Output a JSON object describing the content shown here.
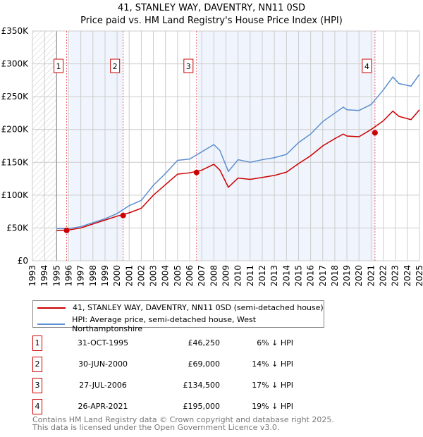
{
  "chart_data": {
    "type": "line",
    "title": "41, STANLEY WAY, DAVENTRY, NN11 0SD",
    "subtitle": "Price paid vs. HM Land Registry's House Price Index (HPI)",
    "xlim": [
      1993,
      2025
    ],
    "ylim": [
      0,
      350000
    ],
    "yticks": [
      {
        "v": 0,
        "label": "£0"
      },
      {
        "v": 50000,
        "label": "£50K"
      },
      {
        "v": 100000,
        "label": "£100K"
      },
      {
        "v": 150000,
        "label": "£150K"
      },
      {
        "v": 200000,
        "label": "£200K"
      },
      {
        "v": 250000,
        "label": "£250K"
      },
      {
        "v": 300000,
        "label": "£300K"
      },
      {
        "v": 350000,
        "label": "£350K"
      }
    ],
    "xticks": [
      "1993",
      "1994",
      "1995",
      "1996",
      "1997",
      "1998",
      "1999",
      "2000",
      "2001",
      "2002",
      "2003",
      "2004",
      "2005",
      "2006",
      "2007",
      "2008",
      "2009",
      "2010",
      "2011",
      "2012",
      "2013",
      "2014",
      "2015",
      "2016",
      "2017",
      "2018",
      "2019",
      "2020",
      "2021",
      "2022",
      "2023",
      "2024",
      "2025"
    ],
    "series": [
      {
        "name": "41, STANLEY WAY, DAVENTRY, NN11 0SD (semi-detached house)",
        "color": "#cc0000",
        "x": [
          1995,
          1996,
          1997,
          1998,
          1999,
          2000,
          2001,
          2002,
          2003,
          2004,
          2005,
          2006,
          2007,
          2008,
          2008.5,
          2009.2,
          2010,
          2011,
          2012,
          2013,
          2014,
          2015,
          2016,
          2017,
          2018,
          2018.7,
          2019,
          2020,
          2021,
          2022,
          2022.8,
          2023.3,
          2024.3,
          2025
        ],
        "y": [
          46000,
          47000,
          50000,
          56000,
          62000,
          68000,
          73000,
          80000,
          100000,
          116000,
          132000,
          134000,
          138000,
          147000,
          138000,
          112000,
          126000,
          124000,
          127000,
          130000,
          135000,
          148000,
          160000,
          175000,
          186000,
          193000,
          190000,
          189000,
          200000,
          213000,
          228000,
          220000,
          215000,
          230000
        ]
      },
      {
        "name": "HPI: Average price, semi-detached house, West Northamptonshire",
        "color": "#5b8fd0",
        "x": [
          1995,
          1996,
          1997,
          1998,
          1999,
          2000,
          2001,
          2002,
          2003,
          2004,
          2005,
          2006,
          2007,
          2008,
          2008.5,
          2009.2,
          2010,
          2011,
          2012,
          2013,
          2014,
          2015,
          2016,
          2017,
          2018,
          2018.7,
          2019,
          2020,
          2021,
          2022,
          2022.8,
          2023.3,
          2024.3,
          2025
        ],
        "y": [
          49000,
          49000,
          52000,
          58000,
          64000,
          72000,
          84000,
          92000,
          115000,
          133000,
          153000,
          155000,
          166000,
          177000,
          168000,
          136000,
          154000,
          150000,
          154000,
          157000,
          162000,
          180000,
          193000,
          212000,
          225000,
          234000,
          230000,
          229000,
          238000,
          260000,
          280000,
          270000,
          266000,
          284000
        ]
      }
    ],
    "sales": [
      {
        "n": "1",
        "x": 1995.83,
        "y": 46250,
        "date": "31-OCT-1995",
        "price": "£46,250",
        "hpi": "6% ↓ HPI"
      },
      {
        "n": "2",
        "x": 2000.5,
        "y": 69000,
        "date": "30-JUN-2000",
        "price": "£69,000",
        "hpi": "14% ↓ HPI"
      },
      {
        "n": "3",
        "x": 2006.57,
        "y": 134500,
        "date": "27-JUL-2006",
        "price": "£134,500",
        "hpi": "17% ↓ HPI"
      },
      {
        "n": "4",
        "x": 2021.32,
        "y": 195000,
        "date": "26-APR-2021",
        "price": "£195,000",
        "hpi": "19% ↓ HPI"
      }
    ],
    "legend_position": "below"
  },
  "footer": {
    "line1": "Contains HM Land Registry data © Crown copyright and database right 2025.",
    "line2": "This data is licensed under the Open Government Licence v3.0."
  }
}
